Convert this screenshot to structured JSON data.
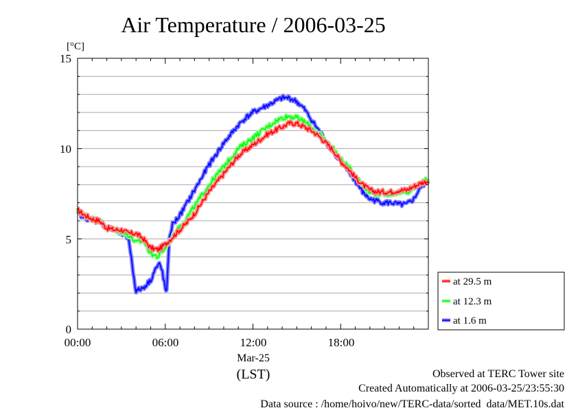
{
  "chart_data": {
    "type": "line",
    "title": "Air Temperature / 2006-03-25",
    "ylabel": "[°C]",
    "xlabel": "(LST)",
    "x_date_label": "Mar-25",
    "ylim": [
      0,
      15
    ],
    "xlim": [
      "00:00",
      "24:00"
    ],
    "x_unit": "hour of day",
    "yticks": [
      "0",
      "5",
      "10",
      "15"
    ],
    "xticks": [
      "00:00",
      "06:00",
      "12:00",
      "18:00"
    ],
    "grid": "horizontal, every 1 °C",
    "legend_position": "right, outside plot",
    "series": [
      {
        "name": "at 29.5 m",
        "color": "#ff0000",
        "x": [
          0,
          0.5,
          1,
          1.5,
          2,
          2.5,
          3,
          3.5,
          4,
          4.5,
          5,
          5.5,
          6,
          6.5,
          7,
          7.5,
          8,
          8.5,
          9,
          9.5,
          10,
          10.5,
          11,
          11.5,
          12,
          12.5,
          13,
          13.5,
          14,
          14.5,
          15,
          15.5,
          16,
          16.5,
          17,
          17.5,
          18,
          18.5,
          19,
          19.5,
          20,
          20.5,
          21,
          21.5,
          22,
          22.5,
          23,
          23.5,
          24
        ],
        "values": [
          6.6,
          6.3,
          6.1,
          6.0,
          5.6,
          5.5,
          5.5,
          5.3,
          5.3,
          5.0,
          4.5,
          4.4,
          4.7,
          5.1,
          5.5,
          5.9,
          6.4,
          7.0,
          7.6,
          8.1,
          8.6,
          9.1,
          9.6,
          9.9,
          10.2,
          10.5,
          10.8,
          11.0,
          11.2,
          11.4,
          11.4,
          11.2,
          11.0,
          10.7,
          10.3,
          9.9,
          9.3,
          8.9,
          8.4,
          8.0,
          7.7,
          7.6,
          7.6,
          7.6,
          7.7,
          7.7,
          7.9,
          8.1,
          8.2
        ]
      },
      {
        "name": "at 12.3 m",
        "color": "#00ff00",
        "x": [
          0,
          0.5,
          1,
          1.5,
          2,
          2.5,
          3,
          3.5,
          4,
          4.5,
          5,
          5.5,
          6,
          6.5,
          7,
          7.5,
          8,
          8.5,
          9,
          9.5,
          10,
          10.5,
          11,
          11.5,
          12,
          12.5,
          13,
          13.5,
          14,
          14.5,
          15,
          15.5,
          16,
          16.5,
          17,
          17.5,
          18,
          18.5,
          19,
          19.5,
          20,
          20.5,
          21,
          21.5,
          22,
          22.5,
          23,
          23.5,
          24
        ],
        "values": [
          6.6,
          6.3,
          6.1,
          6.0,
          5.6,
          5.5,
          5.4,
          5.2,
          4.8,
          4.9,
          4.2,
          4.0,
          4.5,
          5.1,
          5.7,
          6.2,
          6.8,
          7.4,
          8.0,
          8.5,
          9.0,
          9.5,
          10.0,
          10.3,
          10.6,
          10.9,
          11.2,
          11.5,
          11.7,
          11.8,
          11.7,
          11.5,
          11.2,
          10.8,
          10.4,
          10.0,
          9.4,
          9.0,
          8.5,
          8.0,
          7.6,
          7.5,
          7.5,
          7.5,
          7.6,
          7.5,
          7.8,
          8.1,
          8.3
        ]
      },
      {
        "name": "at 1.6 m",
        "color": "#0000ff",
        "x": [
          0,
          0.5,
          1,
          1.5,
          2,
          2.5,
          3,
          3.5,
          3.8,
          4,
          4.5,
          5,
          5.3,
          5.6,
          5.8,
          6,
          6.1,
          6.3,
          6.5,
          7,
          7.5,
          8,
          8.5,
          9,
          9.5,
          10,
          10.5,
          11,
          11.5,
          12,
          12.5,
          13,
          13.5,
          14,
          14.5,
          15,
          15.5,
          16,
          16.5,
          17,
          17.5,
          18,
          18.5,
          19,
          19.5,
          20,
          20.5,
          21,
          21.5,
          22,
          22.5,
          23,
          23.5,
          24
        ],
        "values": [
          6.4,
          6.2,
          6.0,
          6.0,
          5.6,
          5.5,
          5.3,
          5.0,
          3.2,
          2.1,
          2.3,
          2.7,
          3.3,
          3.6,
          3.2,
          2.2,
          2.1,
          5.2,
          5.8,
          6.3,
          7.0,
          7.7,
          8.4,
          9.1,
          9.7,
          10.3,
          10.8,
          11.3,
          11.7,
          12.0,
          12.2,
          12.4,
          12.6,
          12.8,
          12.8,
          12.6,
          12.2,
          11.6,
          11.0,
          10.4,
          9.8,
          9.3,
          8.8,
          8.2,
          7.6,
          7.2,
          7.1,
          7.0,
          7.0,
          6.9,
          6.9,
          7.2,
          7.9,
          8.2
        ]
      }
    ]
  },
  "footer": {
    "line1": "Observed at TERC Tower site",
    "line2": "Created Automatically at 2006-03-25/23:55:30",
    "line3": "Data source : /home/hoivo/new/TERC-data/sorted_data/MET.10s.dat"
  }
}
